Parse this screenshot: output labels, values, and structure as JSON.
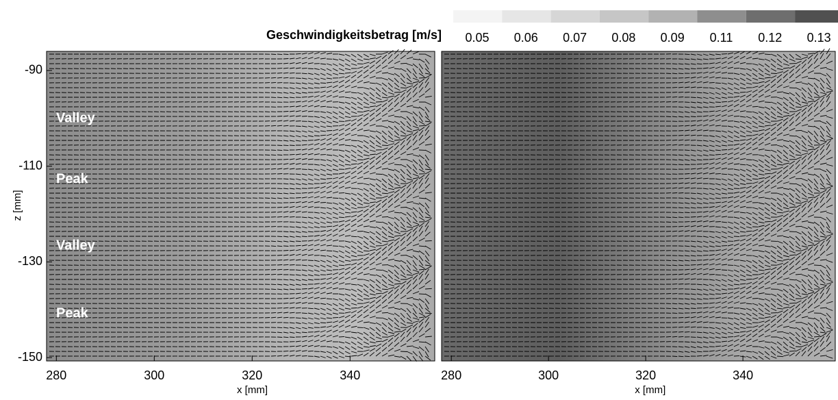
{
  "chart_data": [
    {
      "type": "vector-field",
      "xlabel": "x [mm]",
      "ylabel": "z [mm]",
      "xlim": [
        278,
        357.3
      ],
      "xticks": [
        280,
        300,
        320,
        340
      ],
      "ylim": [
        -150.7,
        -86
      ],
      "yticks": [
        -90,
        -110,
        -130,
        -150
      ],
      "annotations": [
        "Valley",
        "Peak",
        "Valley",
        "Peak"
      ],
      "colorbar": {
        "title": "Geschwindigkeitsbetrag [m/s]",
        "levels": [
          0.05,
          0.06,
          0.07,
          0.08,
          0.09,
          0.11,
          0.12,
          0.13
        ],
        "colors": [
          "#f4f4f4",
          "#e6e6e6",
          "#d6d6d6",
          "#c6c6c6",
          "#b2b2b2",
          "#8e8e8e",
          "#6e6e6e",
          "#505050"
        ]
      }
    },
    {
      "type": "vector-field",
      "xlabel": "x [mm]",
      "xlim": [
        278,
        359
      ],
      "xticks": [
        280,
        300,
        320,
        340
      ],
      "ylim": [
        -150.7,
        -86
      ]
    }
  ]
}
